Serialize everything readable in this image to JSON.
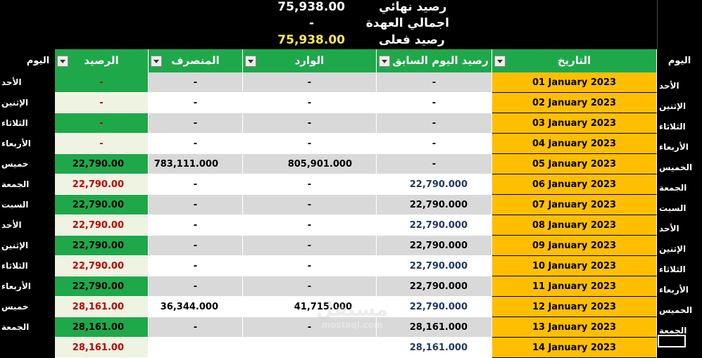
{
  "summary": {
    "final_balance_label": "رصيد نهائي",
    "final_balance_value": "75,938.00",
    "custody_total_label": "اجمالي العهدة",
    "custody_total_value": "-",
    "actual_balance_label": "رصيد فعلى",
    "actual_balance_value": "75,938.00"
  },
  "headers": {
    "day_left": "اليوم",
    "balance": "الرصيد",
    "expense": "المنصرف",
    "incoming": "الوارد",
    "prev_balance": "رصيد اليوم السابق",
    "date": "التاريخ",
    "day_right": "اليوم"
  },
  "rows": [
    {
      "day_left": "الأحد",
      "balance": "-",
      "expense": "-",
      "incoming": "-",
      "prev": "-",
      "date": "01 January 2023",
      "day_right": "الأحد"
    },
    {
      "day_left": "الإثنين",
      "balance": "-",
      "expense": "-",
      "incoming": "-",
      "prev": "-",
      "date": "02 January 2023",
      "day_right": "الإثنين"
    },
    {
      "day_left": "الثلاثاء",
      "balance": "-",
      "expense": "-",
      "incoming": "-",
      "prev": "-",
      "date": "03 January 2023",
      "day_right": "الثلاثاء"
    },
    {
      "day_left": "الأربعاء",
      "balance": "-",
      "expense": "-",
      "incoming": "-",
      "prev": "-",
      "date": "04 January 2023",
      "day_right": "الأربعاء"
    },
    {
      "day_left": "خميس",
      "balance": "22,790.00",
      "expense": "783,111.000",
      "incoming": "805,901.000",
      "prev": "-",
      "date": "05 January 2023",
      "day_right": "الخميس"
    },
    {
      "day_left": "الجمعة",
      "balance": "22,790.00",
      "expense": "-",
      "incoming": "-",
      "prev": "22,790.000",
      "date": "06 January 2023",
      "day_right": "الجمعة"
    },
    {
      "day_left": "السبت",
      "balance": "22,790.00",
      "expense": "-",
      "incoming": "-",
      "prev": "22,790.000",
      "date": "07 January 2023",
      "day_right": "السبت"
    },
    {
      "day_left": "الأحد",
      "balance": "22,790.00",
      "expense": "-",
      "incoming": "-",
      "prev": "22,790.000",
      "date": "08 January 2023",
      "day_right": "الأحد"
    },
    {
      "day_left": "الإثنين",
      "balance": "22,790.00",
      "expense": "-",
      "incoming": "-",
      "prev": "22,790.000",
      "date": "09 January 2023",
      "day_right": "الإثنين"
    },
    {
      "day_left": "الثلاثاء",
      "balance": "22,790.00",
      "expense": "-",
      "incoming": "-",
      "prev": "22,790.000",
      "date": "10 January 2023",
      "day_right": "الثلاثاء"
    },
    {
      "day_left": "الأربعاء",
      "balance": "22,790.00",
      "expense": "-",
      "incoming": "-",
      "prev": "22,790.000",
      "date": "11 January 2023",
      "day_right": "الأربعاء"
    },
    {
      "day_left": "خميس",
      "balance": "28,161.00",
      "expense": "36,344.000",
      "incoming": "41,715.000",
      "prev": "22,790.000",
      "date": "12 January 2023",
      "day_right": "الخميس"
    },
    {
      "day_left": "الجمعة",
      "balance": "28,161.00",
      "expense": "-",
      "incoming": "-",
      "prev": "28,161.000",
      "date": "13 January 2023",
      "day_right": "الجمعة"
    },
    {
      "day_left": "",
      "balance": "28,161.00",
      "expense": "",
      "incoming": "",
      "prev": "28,161.000",
      "date": "14 January 2023",
      "day_right": ""
    }
  ],
  "watermark": {
    "text_ar": "مستقل",
    "text_en": "mostaql.com"
  }
}
